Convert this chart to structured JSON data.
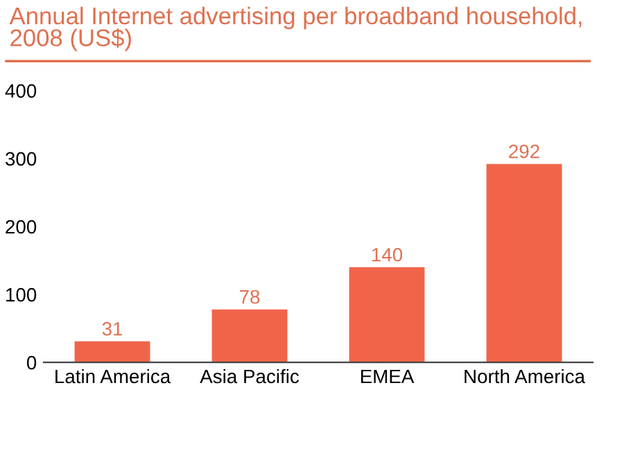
{
  "chart_data": {
    "type": "bar",
    "title": "Annual Internet advertising per broadband household,\n2008 (US$)",
    "categories": [
      "Latin America",
      "Asia Pacific",
      "EMEA",
      "North America"
    ],
    "values": [
      31,
      78,
      140,
      292
    ],
    "color": "#f0654a",
    "ylim": [
      0,
      400
    ],
    "yticks": [
      0,
      100,
      200,
      300,
      400
    ],
    "grid": false,
    "data_labels": true
  }
}
